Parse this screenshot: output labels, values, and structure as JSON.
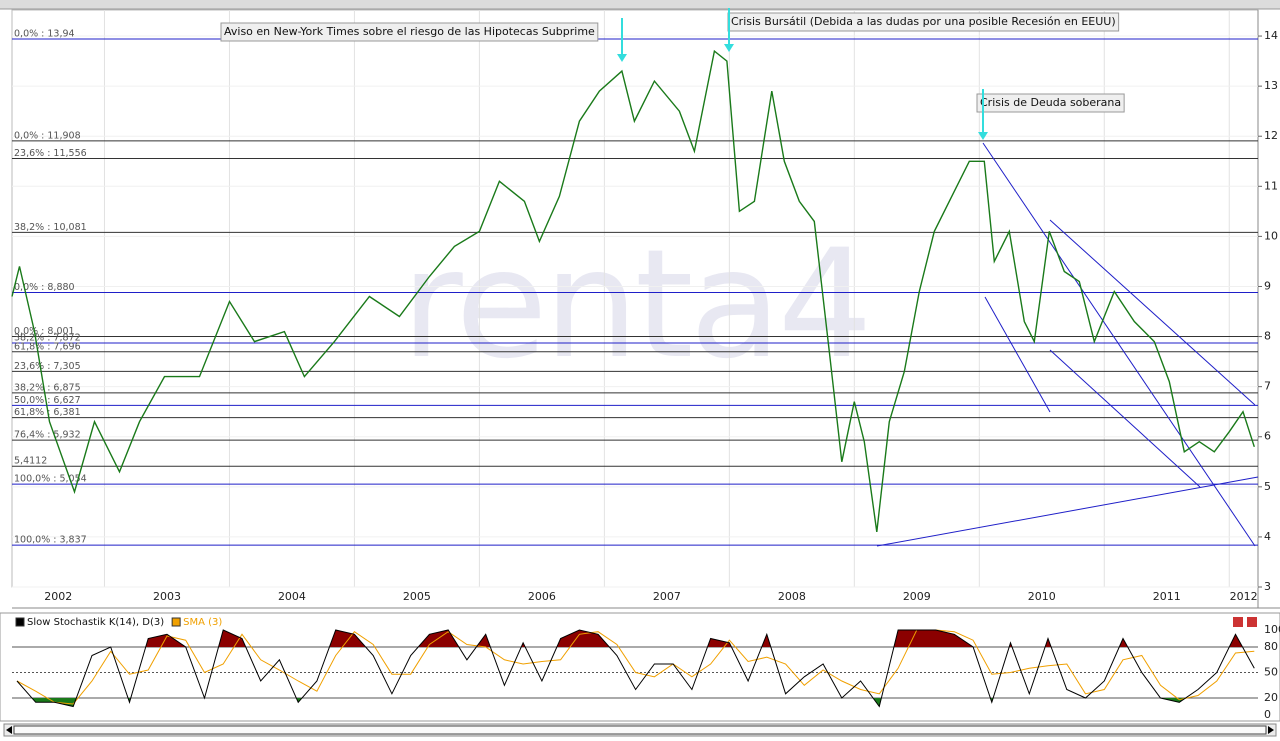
{
  "chart_data": [
    {
      "type": "line",
      "watermark": "renta4",
      "xlim": [
        2002.26,
        2012.23
      ],
      "ylim": [
        3,
        14.52
      ],
      "xticks": [
        2002,
        2003,
        2004,
        2005,
        2006,
        2007,
        2008,
        2009,
        2010,
        2011,
        2012
      ],
      "yticks": [
        3,
        4,
        5,
        6,
        7,
        8,
        9,
        10,
        11,
        12,
        13,
        14
      ],
      "grid": true,
      "x": [
        2002.26,
        2002.32,
        2002.44,
        2002.56,
        2002.76,
        2002.92,
        2003.12,
        2003.28,
        2003.48,
        2003.76,
        2004.0,
        2004.2,
        2004.44,
        2004.6,
        2004.84,
        2005.12,
        2005.36,
        2005.6,
        2005.8,
        2006.0,
        2006.16,
        2006.36,
        2006.48,
        2006.64,
        2006.8,
        2006.96,
        2007.14,
        2007.24,
        2007.4,
        2007.6,
        2007.72,
        2007.88,
        2007.98,
        2008.08,
        2008.2,
        2008.34,
        2008.44,
        2008.56,
        2008.68,
        2008.8,
        2008.9,
        2009.0,
        2009.08,
        2009.18,
        2009.28,
        2009.4,
        2009.52,
        2009.64,
        2009.8,
        2009.92,
        2010.04,
        2010.12,
        2010.24,
        2010.36,
        2010.44,
        2010.56,
        2010.68,
        2010.8,
        2010.92,
        2011.08,
        2011.24,
        2011.4,
        2011.52,
        2011.64,
        2011.76,
        2011.88,
        2012.0,
        2012.11,
        2012.2
      ],
      "series": [
        {
          "color": "#1a7a1a",
          "values": [
            8.8,
            9.4,
            8.1,
            6.3,
            4.9,
            6.3,
            5.3,
            6.3,
            7.2,
            7.2,
            8.7,
            7.9,
            8.1,
            7.2,
            7.9,
            8.8,
            8.4,
            9.2,
            9.8,
            10.1,
            11.1,
            10.7,
            9.9,
            10.8,
            12.3,
            12.9,
            13.3,
            12.3,
            13.1,
            12.5,
            11.7,
            13.7,
            13.5,
            10.5,
            10.7,
            12.9,
            11.5,
            10.7,
            10.3,
            7.7,
            5.5,
            6.7,
            5.9,
            4.1,
            6.3,
            7.3,
            8.9,
            10.1,
            10.9,
            11.5,
            11.5,
            9.5,
            10.1,
            8.3,
            7.9,
            10.1,
            9.3,
            9.1,
            7.9,
            8.9,
            8.3,
            7.9,
            7.1,
            5.7,
            5.9,
            5.7,
            6.1,
            6.5,
            5.8
          ]
        }
      ],
      "levels": [
        {
          "label": "0,0% : 13,94",
          "value": 13.94,
          "color": "#1f1fc8"
        },
        {
          "label": "0,0% : 11,908",
          "value": 11.908,
          "color": "#333333"
        },
        {
          "label": "23,6% : 11,556",
          "value": 11.556,
          "color": "#333333"
        },
        {
          "label": "38,2% : 10,081",
          "value": 10.081,
          "color": "#333333"
        },
        {
          "label": "0,0% : 8,880",
          "value": 8.88,
          "color": "#1f1fc8"
        },
        {
          "label": "0,0% : 8,001",
          "value": 8.001,
          "color": "#333333"
        },
        {
          "label": "38,2% : 7,872",
          "value": 7.872,
          "color": "#1f1fc8"
        },
        {
          "label": "61,8% : 7,696",
          "value": 7.696,
          "color": "#333333"
        },
        {
          "label": "23,6% : 7,305",
          "value": 7.305,
          "color": "#333333"
        },
        {
          "label": "38,2% : 6,875",
          "value": 6.875,
          "color": "#333333"
        },
        {
          "label": "50,0% : 6,627",
          "value": 6.627,
          "color": "#1f1fc8"
        },
        {
          "label": "61,8% : 6,381",
          "value": 6.381,
          "color": "#333333"
        },
        {
          "label": "76,4% : 5,932",
          "value": 5.932,
          "color": "#333333"
        },
        {
          "label": "5,4112",
          "value": 5.4112,
          "color": "#333333"
        },
        {
          "label": "100,0% : 5,054",
          "value": 5.054,
          "color": "#1f1fc8"
        },
        {
          "label": "100,0% : 3,837",
          "value": 3.837,
          "color": "#1f1fc8"
        }
      ],
      "annotations": [
        "Aviso en New-York Times sobre el riesgo de las Hipotecas Subprime",
        "Crisis Bursátil (Debida a las dudas por una posible Recesión en EEUU)",
        "Crisis de Deuda soberana"
      ]
    },
    {
      "type": "line",
      "xlim": [
        2002.26,
        2012.23
      ],
      "ylim": [
        0,
        100
      ],
      "yticks": [
        0,
        20,
        50,
        80,
        100
      ],
      "overbought": 80,
      "overbought_color": "#8b0000",
      "oversold": 20,
      "oversold_color": "#1a7a1a",
      "x": [
        2002.3,
        2002.45,
        2002.6,
        2002.75,
        2002.9,
        2003.05,
        2003.2,
        2003.35,
        2003.5,
        2003.65,
        2003.8,
        2003.95,
        2004.1,
        2004.25,
        2004.4,
        2004.55,
        2004.7,
        2004.85,
        2005.0,
        2005.15,
        2005.3,
        2005.45,
        2005.6,
        2005.75,
        2005.9,
        2006.05,
        2006.2,
        2006.35,
        2006.5,
        2006.65,
        2006.8,
        2006.95,
        2007.1,
        2007.25,
        2007.4,
        2007.55,
        2007.7,
        2007.85,
        2008.0,
        2008.15,
        2008.3,
        2008.45,
        2008.6,
        2008.75,
        2008.9,
        2009.05,
        2009.2,
        2009.35,
        2009.5,
        2009.65,
        2009.8,
        2009.95,
        2010.1,
        2010.25,
        2010.4,
        2010.55,
        2010.7,
        2010.85,
        2011.0,
        2011.15,
        2011.3,
        2011.45,
        2011.6,
        2011.75,
        2011.9,
        2012.05,
        2012.2
      ],
      "series": [
        {
          "name": "Slow Stochastik K(14), D(3)",
          "color": "#000000",
          "values": [
            40,
            15,
            15,
            10,
            70,
            80,
            15,
            90,
            95,
            80,
            20,
            100,
            90,
            40,
            65,
            15,
            40,
            100,
            95,
            70,
            25,
            70,
            95,
            100,
            65,
            95,
            35,
            85,
            40,
            90,
            100,
            95,
            70,
            30,
            60,
            60,
            30,
            90,
            85,
            40,
            95,
            25,
            45,
            60,
            20,
            40,
            10,
            100,
            100,
            100,
            95,
            80,
            15,
            85,
            25,
            90,
            30,
            20,
            40,
            90,
            50,
            20,
            15,
            30,
            50,
            95,
            55
          ]
        },
        {
          "name": "SMA (3)",
          "color": "#f0a000",
          "values": [
            40,
            28,
            15,
            13,
            40,
            75,
            48,
            53,
            93,
            88,
            50,
            60,
            95,
            65,
            53,
            40,
            28,
            70,
            98,
            83,
            48,
            48,
            83,
            98,
            83,
            80,
            65,
            60,
            63,
            65,
            95,
            98,
            83,
            50,
            45,
            60,
            45,
            60,
            88,
            63,
            68,
            60,
            35,
            53,
            40,
            30,
            25,
            55,
            100,
            100,
            98,
            88,
            48,
            50,
            55,
            58,
            60,
            25,
            30,
            65,
            70,
            35,
            18,
            23,
            40,
            73,
            75
          ]
        }
      ]
    }
  ]
}
